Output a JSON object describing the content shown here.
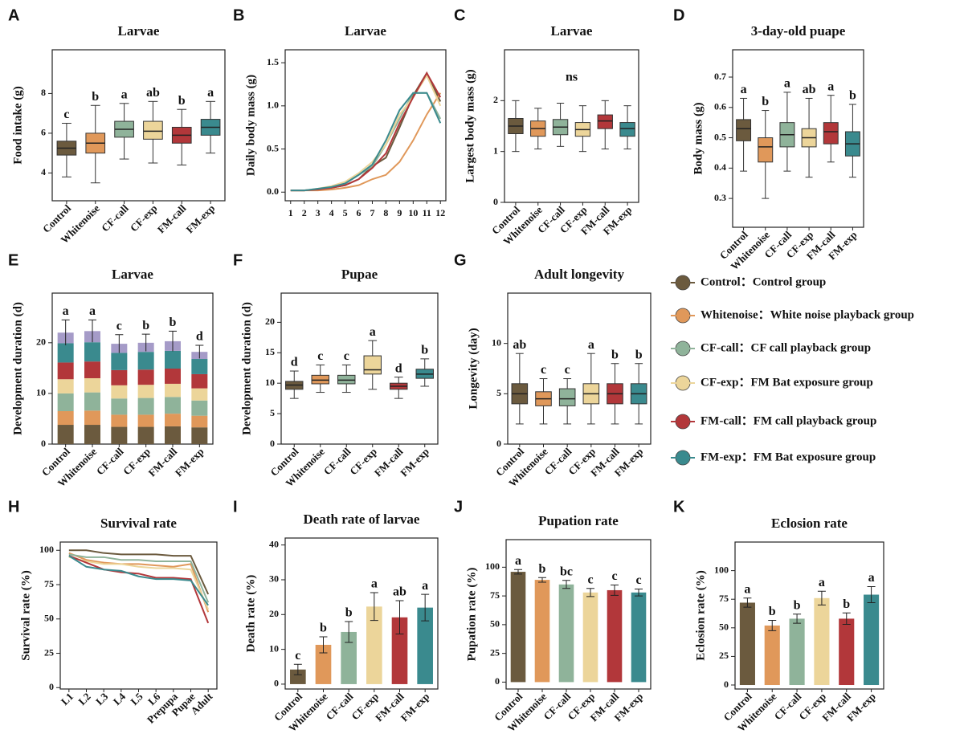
{
  "chart_data": [
    {
      "type": "box",
      "panel_label": "A",
      "title": "Larvae",
      "ylabel": "Food intake (g)",
      "categories": [
        "Control",
        "Whitenoise",
        "CF-call",
        "CF-exp",
        "FM-call",
        "FM-exp"
      ],
      "colors": [
        "#6b5a3e",
        "#e0985a",
        "#8fb39a",
        "#ecd59a",
        "#b2373a",
        "#3a8a8e"
      ],
      "boxes": [
        {
          "whislo": 3.8,
          "q1": 4.9,
          "med": 5.25,
          "q3": 5.6,
          "whishi": 6.5
        },
        {
          "whislo": 3.5,
          "q1": 5.0,
          "med": 5.5,
          "q3": 6.0,
          "whishi": 7.4
        },
        {
          "whislo": 4.7,
          "q1": 5.8,
          "med": 6.2,
          "q3": 6.6,
          "whishi": 7.5
        },
        {
          "whislo": 4.5,
          "q1": 5.7,
          "med": 6.1,
          "q3": 6.6,
          "whishi": 7.6
        },
        {
          "whislo": 4.4,
          "q1": 5.5,
          "med": 5.9,
          "q3": 6.3,
          "whishi": 7.2
        },
        {
          "whislo": 5.0,
          "q1": 5.9,
          "med": 6.3,
          "q3": 6.7,
          "whishi": 7.6
        }
      ],
      "letters": [
        "c",
        "b",
        "a",
        "ab",
        "b",
        "a"
      ],
      "ylim": [
        2.6,
        10.2
      ],
      "yticks": [
        4,
        6,
        8
      ]
    },
    {
      "type": "line",
      "panel_label": "B",
      "title": "Larvae",
      "ylabel": "Daily body mass (g)",
      "x": [
        1,
        2,
        3,
        4,
        5,
        6,
        7,
        8,
        9,
        10,
        11,
        12
      ],
      "xlim": [
        0.6,
        12.4
      ],
      "xticks": [
        1,
        2,
        3,
        4,
        5,
        6,
        7,
        8,
        9,
        10,
        11,
        12
      ],
      "series": [
        {
          "color": "#6b5a3e",
          "values": [
            0.02,
            0.02,
            0.03,
            0.05,
            0.08,
            0.15,
            0.3,
            0.4,
            0.75,
            1.12,
            1.38,
            1.05
          ]
        },
        {
          "color": "#e0985a",
          "values": [
            0.02,
            0.02,
            0.02,
            0.03,
            0.05,
            0.08,
            0.15,
            0.2,
            0.35,
            0.6,
            0.9,
            1.15
          ]
        },
        {
          "color": "#8fb39a",
          "values": [
            0.02,
            0.02,
            0.03,
            0.05,
            0.1,
            0.2,
            0.3,
            0.55,
            0.85,
            1.15,
            1.15,
            0.85
          ]
        },
        {
          "color": "#ecd59a",
          "values": [
            0.02,
            0.02,
            0.04,
            0.07,
            0.12,
            0.22,
            0.35,
            0.55,
            0.9,
            1.1,
            1.35,
            1.0
          ]
        },
        {
          "color": "#b2373a",
          "values": [
            0.02,
            0.02,
            0.03,
            0.05,
            0.08,
            0.15,
            0.28,
            0.45,
            0.8,
            1.1,
            1.38,
            1.1
          ]
        },
        {
          "color": "#3a8a8e",
          "values": [
            0.02,
            0.02,
            0.04,
            0.06,
            0.1,
            0.2,
            0.32,
            0.6,
            0.95,
            1.15,
            1.15,
            0.8
          ]
        }
      ],
      "ylim": [
        -0.1,
        1.65
      ],
      "yticks": [
        {
          "value": 0,
          "label": "0.0"
        },
        0.5,
        {
          "value": 1,
          "label": "1.0"
        },
        1.5
      ]
    },
    {
      "type": "box",
      "panel_label": "C",
      "title": "Larvae",
      "ylabel": "Largest body mass (g)",
      "annotation": "ns",
      "categories": [
        "Control",
        "Whitenoise",
        "CF-call",
        "CF-exp",
        "FM-call",
        "FM-exp"
      ],
      "colors": [
        "#6b5a3e",
        "#e0985a",
        "#8fb39a",
        "#ecd59a",
        "#b2373a",
        "#3a8a8e"
      ],
      "boxes": [
        {
          "whislo": 1.0,
          "q1": 1.35,
          "med": 1.5,
          "q3": 1.65,
          "whishi": 2.0
        },
        {
          "whislo": 1.05,
          "q1": 1.3,
          "med": 1.45,
          "q3": 1.6,
          "whishi": 1.85
        },
        {
          "whislo": 1.1,
          "q1": 1.33,
          "med": 1.48,
          "q3": 1.63,
          "whishi": 1.95
        },
        {
          "whislo": 1.0,
          "q1": 1.3,
          "med": 1.43,
          "q3": 1.57,
          "whishi": 1.9
        },
        {
          "whislo": 1.05,
          "q1": 1.45,
          "med": 1.6,
          "q3": 1.72,
          "whishi": 2.0
        },
        {
          "whislo": 1.05,
          "q1": 1.3,
          "med": 1.45,
          "q3": 1.57,
          "whishi": 1.9
        }
      ],
      "ylim": [
        0,
        3.0
      ],
      "yticks": [
        0,
        1,
        2
      ]
    },
    {
      "type": "box",
      "panel_label": "D",
      "title": "3-day-old puape",
      "ylabel": "Body mass (g)",
      "categories": [
        "Control",
        "Whitenoise",
        "CF-call",
        "CF-exp",
        "FM-call",
        "FM-exp"
      ],
      "colors": [
        "#6b5a3e",
        "#e0985a",
        "#8fb39a",
        "#ecd59a",
        "#b2373a",
        "#3a8a8e"
      ],
      "boxes": [
        {
          "whislo": 0.39,
          "q1": 0.49,
          "med": 0.53,
          "q3": 0.56,
          "whishi": 0.63
        },
        {
          "whislo": 0.3,
          "q1": 0.42,
          "med": 0.47,
          "q3": 0.5,
          "whishi": 0.59
        },
        {
          "whislo": 0.39,
          "q1": 0.47,
          "med": 0.51,
          "q3": 0.55,
          "whishi": 0.65
        },
        {
          "whislo": 0.37,
          "q1": 0.47,
          "med": 0.5,
          "q3": 0.53,
          "whishi": 0.63
        },
        {
          "whislo": 0.42,
          "q1": 0.48,
          "med": 0.52,
          "q3": 0.55,
          "whishi": 0.64
        },
        {
          "whislo": 0.37,
          "q1": 0.44,
          "med": 0.48,
          "q3": 0.52,
          "whishi": 0.61
        }
      ],
      "letters": [
        "a",
        "b",
        "a",
        "ab",
        "a",
        "b"
      ],
      "ylim": [
        0.205,
        0.79
      ],
      "yticks": [
        0.3,
        0.4,
        0.5,
        0.6,
        0.7
      ]
    },
    {
      "type": "stacked_bar",
      "panel_label": "E",
      "title": "Larvae",
      "ylabel": "Development duration (d)",
      "categories": [
        "Control",
        "Whitenoise",
        "CF-call",
        "CF-exp",
        "FM-call",
        "FM-exp"
      ],
      "series": [
        {
          "color": "#6b5a3e",
          "values": [
            3.8,
            3.8,
            3.4,
            3.4,
            3.5,
            3.3
          ]
        },
        {
          "color": "#e0985a",
          "values": [
            2.7,
            2.8,
            2.4,
            2.4,
            2.5,
            2.3
          ]
        },
        {
          "color": "#8fb39a",
          "values": [
            3.5,
            3.6,
            3.2,
            3.3,
            3.3,
            3.0
          ]
        },
        {
          "color": "#ecd59a",
          "values": [
            2.8,
            2.8,
            2.6,
            2.6,
            2.6,
            2.4
          ]
        },
        {
          "color": "#b2373a",
          "values": [
            3.3,
            3.3,
            3.0,
            3.0,
            3.0,
            2.8
          ]
        },
        {
          "color": "#3a8a8e",
          "values": [
            3.8,
            3.8,
            3.4,
            3.5,
            3.5,
            3.0
          ]
        },
        {
          "color": "#a59bc8",
          "values": [
            2.1,
            2.2,
            1.8,
            1.8,
            1.9,
            1.4
          ]
        }
      ],
      "errors": [
        2.5,
        2.2,
        1.8,
        1.7,
        2.0,
        1.3
      ],
      "letters": [
        "a",
        "a",
        "c",
        "b",
        "b",
        "d"
      ],
      "ylim": [
        0,
        29.8
      ],
      "yticks": [
        0,
        10,
        20
      ]
    },
    {
      "type": "box",
      "panel_label": "F",
      "title": "Pupae",
      "ylabel": "Development duration (d)",
      "categories": [
        "Control",
        "Whitenoise",
        "CF-call",
        "CF-exp",
        "FM-call",
        "FM-exp"
      ],
      "colors": [
        "#6b5a3e",
        "#e0985a",
        "#8fb39a",
        "#ecd59a",
        "#b2373a",
        "#3a8a8e"
      ],
      "boxes": [
        {
          "whislo": 7.5,
          "q1": 9.0,
          "med": 9.7,
          "q3": 10.3,
          "whishi": 12
        },
        {
          "whislo": 8.5,
          "q1": 9.9,
          "med": 10.5,
          "q3": 11.3,
          "whishi": 13
        },
        {
          "whislo": 8.5,
          "q1": 9.9,
          "med": 10.5,
          "q3": 11.3,
          "whishi": 13
        },
        {
          "whislo": 9,
          "q1": 11.5,
          "med": 12.2,
          "q3": 14.5,
          "whishi": 17
        },
        {
          "whislo": 7.5,
          "q1": 9.0,
          "med": 9.5,
          "q3": 10,
          "whishi": 11
        },
        {
          "whislo": 9.5,
          "q1": 10.8,
          "med": 11.5,
          "q3": 12.3,
          "whishi": 14
        }
      ],
      "letters": [
        "d",
        "c",
        "c",
        "a",
        "d",
        "b"
      ],
      "ylim": [
        0,
        24.8
      ],
      "yticks": [
        0,
        5,
        10,
        15,
        20
      ]
    },
    {
      "type": "box",
      "panel_label": "G",
      "title": "Adult longevity",
      "ylabel": "Longevity (day)",
      "categories": [
        "Control",
        "Whitenoise",
        "CF-call",
        "CF-exp",
        "FM-call",
        "FM-exp"
      ],
      "colors": [
        "#6b5a3e",
        "#e0985a",
        "#8fb39a",
        "#ecd59a",
        "#b2373a",
        "#3a8a8e"
      ],
      "boxes": [
        {
          "whislo": 2,
          "q1": 4,
          "med": 5,
          "q3": 6,
          "whishi": 9
        },
        {
          "whislo": 2,
          "q1": 3.8,
          "med": 4.5,
          "q3": 5.2,
          "whishi": 6.5
        },
        {
          "whislo": 2,
          "q1": 3.8,
          "med": 4.5,
          "q3": 5.5,
          "whishi": 6.5
        },
        {
          "whislo": 2,
          "q1": 4,
          "med": 5,
          "q3": 6,
          "whishi": 9
        },
        {
          "whislo": 2,
          "q1": 4,
          "med": 5,
          "q3": 6,
          "whishi": 8
        },
        {
          "whislo": 2,
          "q1": 4,
          "med": 5,
          "q3": 6,
          "whishi": 8
        }
      ],
      "letters": [
        "ab",
        "c",
        "c",
        "a",
        "b",
        "b"
      ],
      "ylim": [
        0,
        15
      ],
      "yticks": [
        0,
        5,
        10
      ]
    },
    {
      "type": "line",
      "panel_label": "H",
      "title": "Survival rate",
      "ylabel": "Survival rate (%)",
      "categories": [
        "L1",
        "L2",
        "L3",
        "L4",
        "L5",
        "L6",
        "Prepupa",
        "Pupae",
        "Adult"
      ],
      "series": [
        {
          "color": "#6b5a3e",
          "values": [
            100,
            100,
            98,
            97,
            97,
            97,
            96,
            96,
            68
          ]
        },
        {
          "color": "#e0985a",
          "values": [
            98,
            93,
            91,
            90,
            90,
            89,
            88,
            90,
            55
          ]
        },
        {
          "color": "#8fb39a",
          "values": [
            97,
            95,
            95,
            93,
            93,
            92,
            92,
            92,
            62
          ]
        },
        {
          "color": "#ecd59a",
          "values": [
            95,
            92,
            90,
            90,
            88,
            87,
            87,
            86,
            57
          ]
        },
        {
          "color": "#b2373a",
          "values": [
            96,
            91,
            86,
            84,
            83,
            80,
            80,
            79,
            47
          ]
        },
        {
          "color": "#3a8a8e",
          "values": [
            96,
            88,
            86,
            85,
            81,
            79,
            79,
            78,
            60
          ]
        }
      ],
      "ylim": [
        -1,
        106
      ],
      "yticks": [
        0,
        25,
        50,
        75,
        100
      ]
    },
    {
      "type": "bar",
      "panel_label": "I",
      "title": "Death rate of larvae",
      "ylabel": "Death rate (%)",
      "categories": [
        "Control",
        "Whitenoise",
        "CF-call",
        "CF-exp",
        "FM-call",
        "FM-exp"
      ],
      "colors": [
        "#6b5a3e",
        "#e0985a",
        "#8fb39a",
        "#ecd59a",
        "#b2373a",
        "#3a8a8e"
      ],
      "values": [
        4.2,
        11.3,
        15,
        22.3,
        19.2,
        22
      ],
      "errors": [
        1.5,
        2.3,
        3,
        4,
        4.8,
        3.8
      ],
      "letters": [
        "c",
        "b",
        "b",
        "a",
        "ab",
        "a"
      ],
      "ylim": [
        -1.4,
        42
      ],
      "yticks": [
        0,
        10,
        20,
        30,
        40
      ]
    },
    {
      "type": "bar",
      "panel_label": "J",
      "title": "Pupation rate",
      "ylabel": "Pupation rate (%)",
      "categories": [
        "Control",
        "Whitenoise",
        "CF-call",
        "CF-exp",
        "FM-call",
        "FM-exp"
      ],
      "colors": [
        "#6b5a3e",
        "#e0985a",
        "#8fb39a",
        "#ecd59a",
        "#b2373a",
        "#3a8a8e"
      ],
      "values": [
        96,
        89,
        85,
        78,
        80,
        78
      ],
      "errors": [
        2,
        2,
        3.5,
        3.5,
        4.5,
        3
      ],
      "letters": [
        "a",
        "b",
        "bc",
        "c",
        "c",
        "c"
      ],
      "ylim": [
        -6,
        124
      ],
      "yticks": [
        0,
        25,
        50,
        75,
        100
      ]
    },
    {
      "type": "bar",
      "panel_label": "K",
      "title": "Eclosion rate",
      "ylabel": "Eclosion rate (%)",
      "categories": [
        "Control",
        "Whitenoise",
        "CF-call",
        "CF-exp",
        "FM-call",
        "FM-exp"
      ],
      "colors": [
        "#6b5a3e",
        "#e0985a",
        "#8fb39a",
        "#ecd59a",
        "#b2373a",
        "#3a8a8e"
      ],
      "values": [
        72,
        52,
        58,
        76,
        58,
        79
      ],
      "errors": [
        4,
        4.5,
        4,
        6,
        5,
        7
      ],
      "letters": [
        "a",
        "b",
        "b",
        "a",
        "b",
        "a"
      ],
      "ylim": [
        -3.5,
        125
      ],
      "yticks": [
        0,
        25,
        50,
        75,
        100
      ]
    }
  ],
  "legend": {
    "items": [
      {
        "label": "Control：Control group",
        "color": "#6b5a3e"
      },
      {
        "label": "Whitenoise：White noise playback group",
        "color": "#e0985a"
      },
      {
        "label": "CF-call：CF call playback group",
        "color": "#8fb39a"
      },
      {
        "label": "CF-exp：FM Bat exposure group",
        "color": "#ecd59a"
      },
      {
        "label": "FM-call：FM call playback group",
        "color": "#b2373a"
      },
      {
        "label": "FM-exp：FM Bat exposure group",
        "color": "#3a8a8e"
      }
    ]
  }
}
